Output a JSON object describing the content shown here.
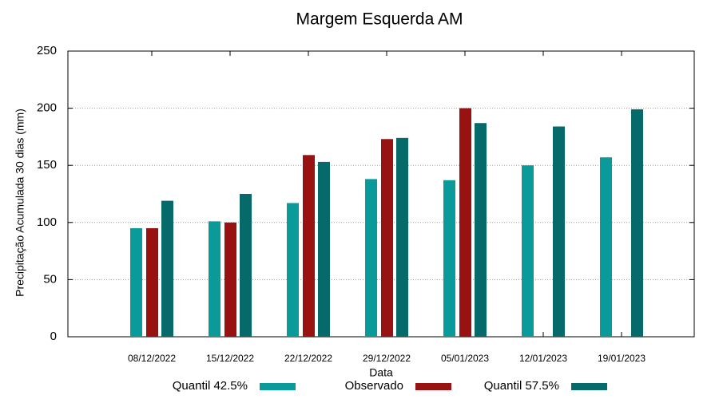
{
  "chart_data": {
    "type": "bar",
    "title": "Margem Esquerda AM",
    "x_label": "Data",
    "y_label": "Precipitação Acumulada 30 dias (mm)",
    "categories": [
      "08/12/2022",
      "15/12/2022",
      "22/12/2022",
      "29/12/2022",
      "05/01/2023",
      "12/01/2023",
      "19/01/2023"
    ],
    "series": [
      {
        "name": "Quantil 42.5%",
        "color": "#0a9a9a",
        "values": [
          95,
          101,
          117,
          138,
          137,
          150,
          157
        ]
      },
      {
        "name": "Observado",
        "color": "#981212",
        "values": [
          95,
          100,
          159,
          173,
          200,
          null,
          null
        ]
      },
      {
        "name": "Quantil 57.5%",
        "color": "#066a6a",
        "values": [
          119,
          125,
          153,
          174,
          187,
          184,
          199
        ]
      }
    ],
    "ylim": [
      0,
      250
    ],
    "yticks": [
      0,
      50,
      100,
      150,
      200,
      250
    ],
    "grid": true,
    "legend": "bottom"
  }
}
